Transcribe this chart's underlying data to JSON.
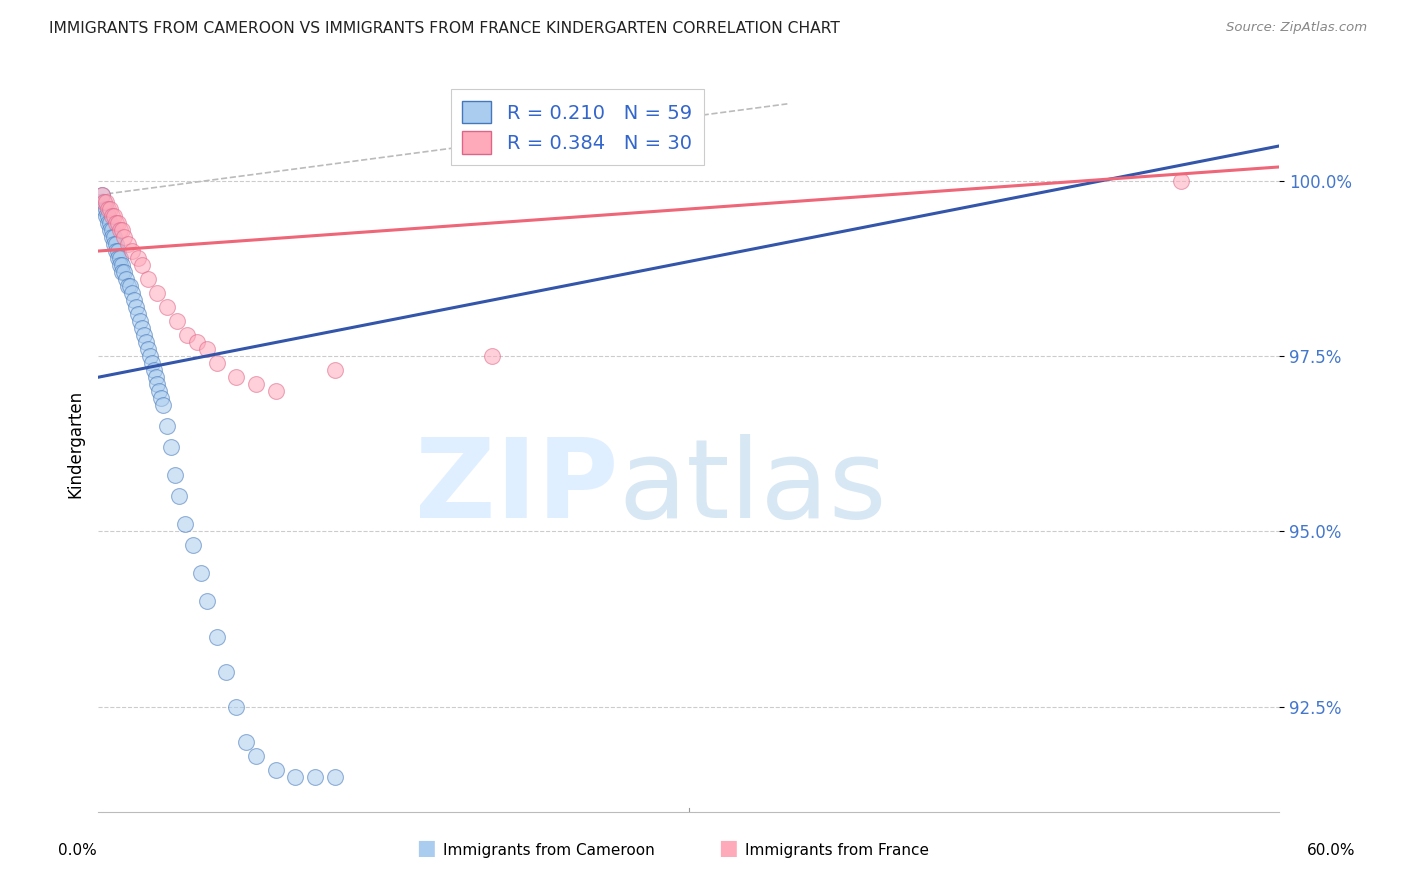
{
  "title": "IMMIGRANTS FROM CAMEROON VS IMMIGRANTS FROM FRANCE KINDERGARTEN CORRELATION CHART",
  "source": "Source: ZipAtlas.com",
  "ylabel": "Kindergarten",
  "y_ticks": [
    92.5,
    95.0,
    97.5,
    100.0
  ],
  "y_tick_labels": [
    "92.5%",
    "95.0%",
    "97.5%",
    "100.0%"
  ],
  "xlim": [
    0.0,
    60.0
  ],
  "ylim": [
    91.0,
    101.5
  ],
  "legend_blue_R": "0.210",
  "legend_blue_N": "59",
  "legend_pink_R": "0.384",
  "legend_pink_N": "30",
  "blue_fill": "#aaccee",
  "blue_edge": "#4477bb",
  "pink_fill": "#ffaabb",
  "pink_edge": "#dd6688",
  "blue_line_color": "#3355aa",
  "pink_line_color": "#ee6677",
  "dashed_color": "#bbbbbb",
  "grid_color": "#cccccc",
  "cameroon_x": [
    0.2,
    0.3,
    0.3,
    0.4,
    0.4,
    0.5,
    0.5,
    0.6,
    0.6,
    0.7,
    0.7,
    0.8,
    0.8,
    0.9,
    0.9,
    1.0,
    1.0,
    1.1,
    1.1,
    1.2,
    1.2,
    1.3,
    1.4,
    1.5,
    1.6,
    1.7,
    1.8,
    1.9,
    2.0,
    2.1,
    2.2,
    2.3,
    2.4,
    2.5,
    2.6,
    2.7,
    2.8,
    2.9,
    3.0,
    3.1,
    3.2,
    3.3,
    3.5,
    3.7,
    3.9,
    4.1,
    4.4,
    4.8,
    5.2,
    5.5,
    6.0,
    6.5,
    7.0,
    7.5,
    8.0,
    9.0,
    10.0,
    11.0,
    12.0
  ],
  "cameroon_y": [
    99.8,
    99.7,
    99.6,
    99.6,
    99.5,
    99.5,
    99.4,
    99.4,
    99.3,
    99.3,
    99.2,
    99.2,
    99.1,
    99.1,
    99.0,
    99.0,
    98.9,
    98.9,
    98.8,
    98.8,
    98.7,
    98.7,
    98.6,
    98.5,
    98.5,
    98.4,
    98.3,
    98.2,
    98.1,
    98.0,
    97.9,
    97.8,
    97.7,
    97.6,
    97.5,
    97.4,
    97.3,
    97.2,
    97.1,
    97.0,
    96.9,
    96.8,
    96.5,
    96.2,
    95.8,
    95.5,
    95.1,
    94.8,
    94.4,
    94.0,
    93.5,
    93.0,
    92.5,
    92.0,
    91.8,
    91.6,
    91.5,
    91.5,
    91.5
  ],
  "france_x": [
    0.2,
    0.3,
    0.4,
    0.5,
    0.6,
    0.7,
    0.8,
    0.9,
    1.0,
    1.1,
    1.2,
    1.3,
    1.5,
    1.7,
    2.0,
    2.2,
    2.5,
    3.0,
    3.5,
    4.0,
    4.5,
    5.0,
    5.5,
    6.0,
    7.0,
    8.0,
    9.0,
    12.0,
    20.0,
    55.0
  ],
  "france_y": [
    99.8,
    99.7,
    99.7,
    99.6,
    99.6,
    99.5,
    99.5,
    99.4,
    99.4,
    99.3,
    99.3,
    99.2,
    99.1,
    99.0,
    98.9,
    98.8,
    98.6,
    98.4,
    98.2,
    98.0,
    97.8,
    97.7,
    97.6,
    97.4,
    97.2,
    97.1,
    97.0,
    97.3,
    97.5,
    100.0
  ],
  "blue_trendline_x": [
    0.0,
    60.0
  ],
  "blue_trendline_y": [
    97.2,
    100.5
  ],
  "pink_trendline_x": [
    0.0,
    60.0
  ],
  "pink_trendline_y": [
    99.0,
    100.2
  ],
  "dashed_line_x": [
    0.0,
    35.0
  ],
  "dashed_line_y": [
    99.8,
    101.1
  ]
}
